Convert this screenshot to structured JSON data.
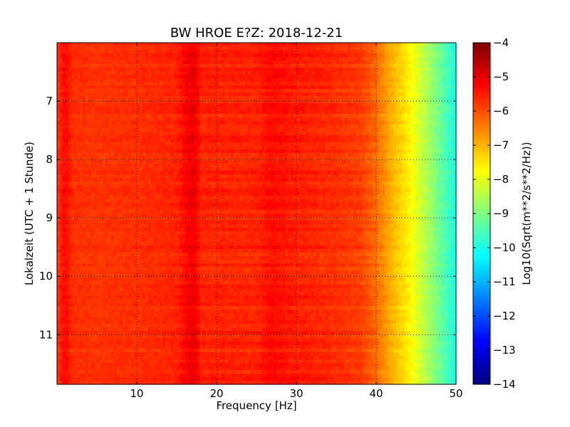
{
  "chart_data": {
    "type": "heatmap",
    "title": "BW HROE E?Z: 2018-12-21",
    "xlabel": "Frequency [Hz]",
    "ylabel": "Lokalzeit (UTC + 1 Stunde)",
    "xlim": [
      0,
      50
    ],
    "ylim": [
      11.85,
      6.0
    ],
    "y_inverted": true,
    "x_ticks": [
      10,
      20,
      30,
      40,
      50
    ],
    "y_ticks": [
      7,
      8,
      9,
      10,
      11
    ],
    "grid": true,
    "colorbar": {
      "label": "Log10(Sqrt(m**2/s**2/Hz))",
      "range": [
        -14,
        -4
      ],
      "ticks": [
        -4,
        -5,
        -6,
        -7,
        -8,
        -9,
        -10,
        -11,
        -12,
        -13,
        -14
      ],
      "colormap": "jet"
    },
    "spectral_profile": {
      "frequency_hz": [
        0,
        1,
        2,
        5,
        10,
        15,
        16.5,
        17,
        17.5,
        18,
        20,
        25,
        27,
        29,
        32,
        35,
        38,
        40,
        42,
        44,
        46,
        48,
        50
      ],
      "log10_amplitude": [
        -5.8,
        -5.3,
        -5.7,
        -5.75,
        -5.7,
        -5.6,
        -5.2,
        -5.1,
        -5.2,
        -5.6,
        -5.6,
        -5.6,
        -5.35,
        -5.5,
        -5.6,
        -5.7,
        -5.85,
        -6.3,
        -7.0,
        -7.6,
        -8.4,
        -9.2,
        -10.0
      ]
    }
  }
}
